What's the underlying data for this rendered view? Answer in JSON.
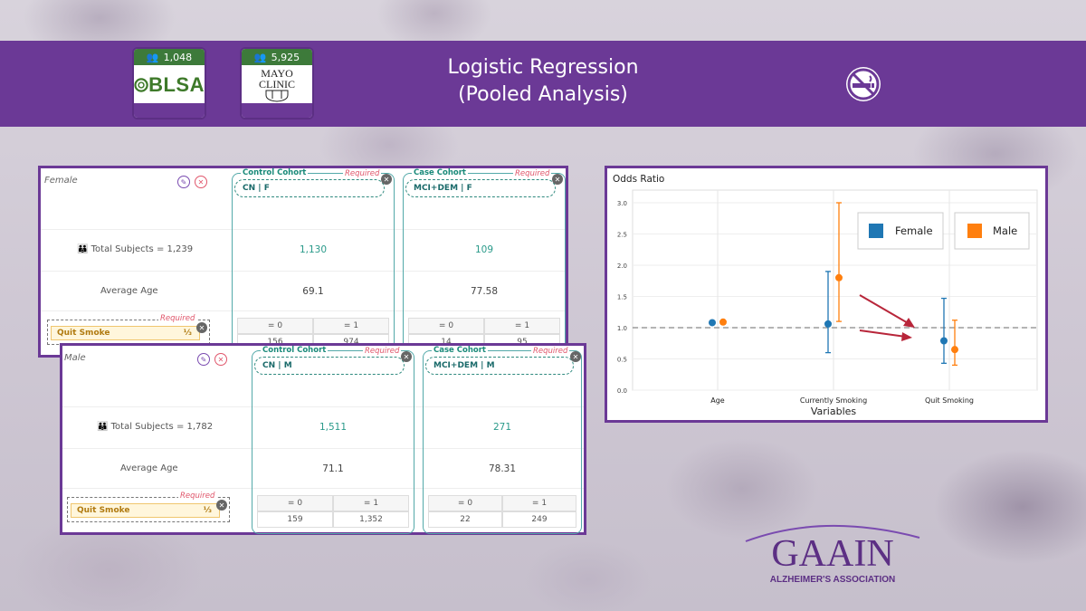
{
  "header": {
    "title_line1": "Logistic Regression",
    "title_line2": "(Pooled Analysis)",
    "datasets": [
      {
        "count": "1,048",
        "name": "BLSA"
      },
      {
        "count": "5,925",
        "name_line1": "MAYO",
        "name_line2": "CLINIC"
      }
    ]
  },
  "female_panel": {
    "group": "Female",
    "total_subjects": "Total Subjects = 1,239",
    "average_age_label": "Average Age",
    "control": {
      "title": "Control Cohort",
      "required": "Required",
      "pill": "CN | F",
      "total": "1,130",
      "age": "69.1",
      "eq0": "= 0",
      "eq1": "= 1",
      "v0": "156",
      "v1": "974"
    },
    "case": {
      "title": "Case Cohort",
      "required": "Required",
      "pill": "MCI+DEM | F",
      "total": "109",
      "age": "77.58",
      "eq0": "= 0",
      "eq1": "= 1",
      "v0": "14",
      "v1": "95"
    },
    "variable": {
      "required": "Required",
      "name": "Quit Smoke",
      "suffix": "⅓"
    }
  },
  "male_panel": {
    "group": "Male",
    "total_subjects": "Total Subjects = 1,782",
    "average_age_label": "Average Age",
    "control": {
      "title": "Control Cohort",
      "required": "Required",
      "pill": "CN | M",
      "total": "1,511",
      "age": "71.1",
      "eq0": "= 0",
      "eq1": "= 1",
      "v0": "159",
      "v1": "1,352"
    },
    "case": {
      "title": "Case Cohort",
      "required": "Required",
      "pill": "MCI+DEM | M",
      "total": "271",
      "age": "78.31",
      "eq0": "= 0",
      "eq1": "= 1",
      "v0": "22",
      "v1": "249"
    },
    "variable": {
      "required": "Required",
      "name": "Quit Smoke",
      "suffix": "⅓"
    }
  },
  "chart_data": {
    "type": "scatter",
    "title": "Odds Ratio",
    "xlabel": "Variables",
    "ylabel": "",
    "categories": [
      "Age",
      "Currently Smoking",
      "Quit Smoking"
    ],
    "ylim": [
      0,
      3.0
    ],
    "yticks": [
      "0.0",
      "0.5",
      "1.0",
      "1.5",
      "2.0",
      "2.5",
      "3.0"
    ],
    "reference_line": 1.0,
    "series": [
      {
        "name": "Female",
        "color": "#1f77b4",
        "values": [
          1.08,
          1.06,
          0.79
        ],
        "lower": [
          1.08,
          0.6,
          0.43
        ],
        "upper": [
          1.08,
          1.9,
          1.47
        ]
      },
      {
        "name": "Male",
        "color": "#ff7f0e",
        "values": [
          1.09,
          1.8,
          0.65
        ],
        "lower": [
          1.09,
          1.1,
          0.4
        ],
        "upper": [
          1.09,
          3.0,
          1.12
        ]
      }
    ],
    "legend": "top-right"
  },
  "footer": {
    "logo_main": "GAAIN",
    "logo_sub": "ALZHEIMER'S ASSOCIATION"
  }
}
